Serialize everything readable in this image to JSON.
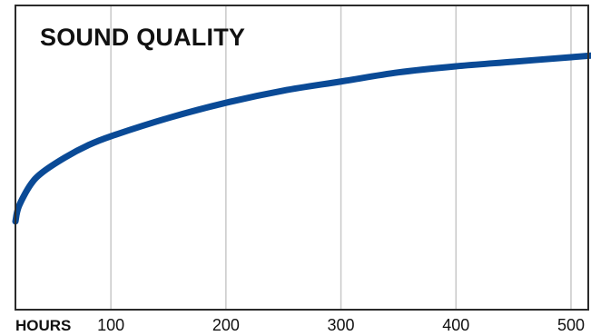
{
  "chart_data": {
    "type": "line",
    "title": "SOUND QUALITY",
    "xlabel": "HOURS",
    "ylabel": "",
    "x_ticks": [
      "100",
      "200",
      "300",
      "400",
      "500"
    ],
    "xlim": [
      17,
      517
    ],
    "ylim": [
      0,
      100
    ],
    "grid": "vertical",
    "legend": "none",
    "series": [
      {
        "x": [
          17,
          20,
          30,
          40,
          60,
          80,
          100,
          150,
          200,
          250,
          300,
          350,
          400,
          450,
          500,
          517
        ],
        "values": [
          29,
          34,
          41,
          45,
          50,
          54,
          57,
          63,
          68,
          72,
          75,
          78,
          80,
          81.5,
          83,
          83.5
        ]
      }
    ],
    "colors": {
      "line": "#0a4a96",
      "grid": "#c8c8c8",
      "frame": "#2b2b2b"
    }
  }
}
